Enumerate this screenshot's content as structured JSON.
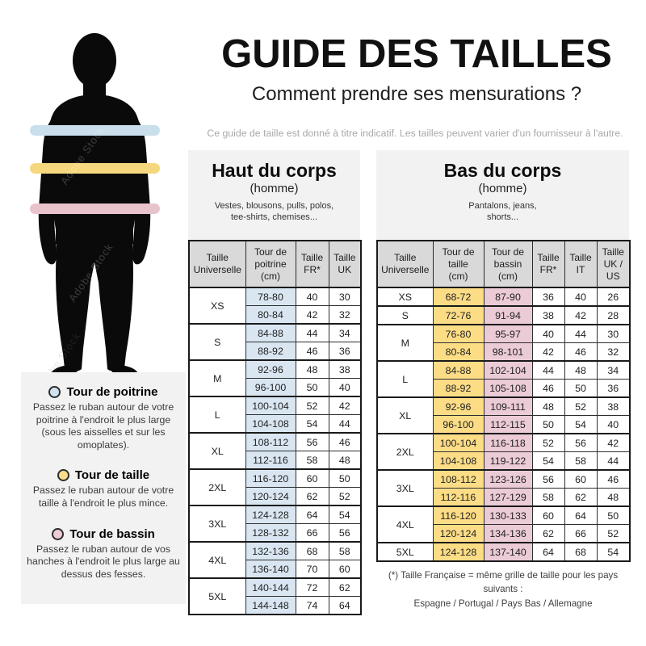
{
  "page": {
    "title": "GUIDE DES TAILLES",
    "subtitle": "Comment prendre ses mensurations ?",
    "disclaimer": "Ce guide de taille est donné à titre indicatif. Les tailles peuvent varier d'un fournisseur à l'autre.",
    "watermark": "Adobe Stock"
  },
  "measure_band_colors": {
    "poitrine": "#c9dfec",
    "taille": "#f5d87e",
    "bassin": "#e8c3cc"
  },
  "legend": {
    "items": [
      {
        "id": "tour-de-poitrine",
        "color": "#cfe3f2",
        "title": "Tour de poitrine",
        "description": "Passez le ruban autour de votre poitrine à l'endroit le plus large (sous les aisselles et sur les omoplates)."
      },
      {
        "id": "tour-de-taille",
        "color": "#f8dd8a",
        "title": "Tour de taille",
        "description": "Passez le ruban autour de votre taille à l'endroit le plus mince."
      },
      {
        "id": "tour-de-bassin",
        "color": "#edccd7",
        "title": "Tour de bassin",
        "description": "Passez le ruban autour de vos hanches à l'endroit le plus large au dessus des fesses."
      }
    ]
  },
  "tables": {
    "haut": {
      "title": "Haut du corps",
      "subtitle": "(homme)",
      "description": "Vestes, blousons, pulls, polos,\ntee-shirts, chemises...",
      "columns": [
        "Taille\nUniverselle",
        "Tour de\npoitrine\n(cm)",
        "Taille\nFR*",
        "Taille\nUK"
      ],
      "groups": [
        {
          "size": "XS",
          "rows": [
            [
              "78-80",
              "40",
              "30"
            ],
            [
              "80-84",
              "42",
              "32"
            ]
          ]
        },
        {
          "size": "S",
          "rows": [
            [
              "84-88",
              "44",
              "34"
            ],
            [
              "88-92",
              "46",
              "36"
            ]
          ]
        },
        {
          "size": "M",
          "rows": [
            [
              "92-96",
              "48",
              "38"
            ],
            [
              "96-100",
              "50",
              "40"
            ]
          ]
        },
        {
          "size": "L",
          "rows": [
            [
              "100-104",
              "52",
              "42"
            ],
            [
              "104-108",
              "54",
              "44"
            ]
          ]
        },
        {
          "size": "XL",
          "rows": [
            [
              "108-112",
              "56",
              "46"
            ],
            [
              "112-116",
              "58",
              "48"
            ]
          ]
        },
        {
          "size": "2XL",
          "rows": [
            [
              "116-120",
              "60",
              "50"
            ],
            [
              "120-124",
              "62",
              "52"
            ]
          ]
        },
        {
          "size": "3XL",
          "rows": [
            [
              "124-128",
              "64",
              "54"
            ],
            [
              "128-132",
              "66",
              "56"
            ]
          ]
        },
        {
          "size": "4XL",
          "rows": [
            [
              "132-136",
              "68",
              "58"
            ],
            [
              "136-140",
              "70",
              "60"
            ]
          ]
        },
        {
          "size": "5XL",
          "rows": [
            [
              "140-144",
              "72",
              "62"
            ],
            [
              "144-148",
              "74",
              "64"
            ]
          ]
        }
      ]
    },
    "bas": {
      "title": "Bas du corps",
      "subtitle": "(homme)",
      "description": "Pantalons, jeans,\nshorts...",
      "columns": [
        "Taille\nUniverselle",
        "Tour de\ntaille\n(cm)",
        "Tour de\nbassin\n(cm)",
        "Taille\nFR*",
        "Taille\nIT",
        "Taille\nUK / US"
      ],
      "groups": [
        {
          "size": "XS",
          "rows": [
            [
              "68-72",
              "87-90",
              "36",
              "40",
              "26"
            ]
          ]
        },
        {
          "size": "S",
          "rows": [
            [
              "72-76",
              "91-94",
              "38",
              "42",
              "28"
            ]
          ]
        },
        {
          "size": "M",
          "rows": [
            [
              "76-80",
              "95-97",
              "40",
              "44",
              "30"
            ],
            [
              "80-84",
              "98-101",
              "42",
              "46",
              "32"
            ]
          ]
        },
        {
          "size": "L",
          "rows": [
            [
              "84-88",
              "102-104",
              "44",
              "48",
              "34"
            ],
            [
              "88-92",
              "105-108",
              "46",
              "50",
              "36"
            ]
          ]
        },
        {
          "size": "XL",
          "rows": [
            [
              "92-96",
              "109-111",
              "48",
              "52",
              "38"
            ],
            [
              "96-100",
              "112-115",
              "50",
              "54",
              "40"
            ]
          ]
        },
        {
          "size": "2XL",
          "rows": [
            [
              "100-104",
              "116-118",
              "52",
              "56",
              "42"
            ],
            [
              "104-108",
              "119-122",
              "54",
              "58",
              "44"
            ]
          ]
        },
        {
          "size": "3XL",
          "rows": [
            [
              "108-112",
              "123-126",
              "56",
              "60",
              "46"
            ],
            [
              "112-116",
              "127-129",
              "58",
              "62",
              "48"
            ]
          ]
        },
        {
          "size": "4XL",
          "rows": [
            [
              "116-120",
              "130-133",
              "60",
              "64",
              "50"
            ],
            [
              "120-124",
              "134-136",
              "62",
              "66",
              "52"
            ]
          ]
        },
        {
          "size": "5XL",
          "rows": [
            [
              "124-128",
              "137-140",
              "64",
              "68",
              "54"
            ]
          ]
        }
      ]
    }
  },
  "footnote": {
    "line1": "(*) Taille Française = même grille de taille pour les pays suivants :",
    "line2": "Espagne / Portugal / Pays Bas / Allemagne"
  }
}
